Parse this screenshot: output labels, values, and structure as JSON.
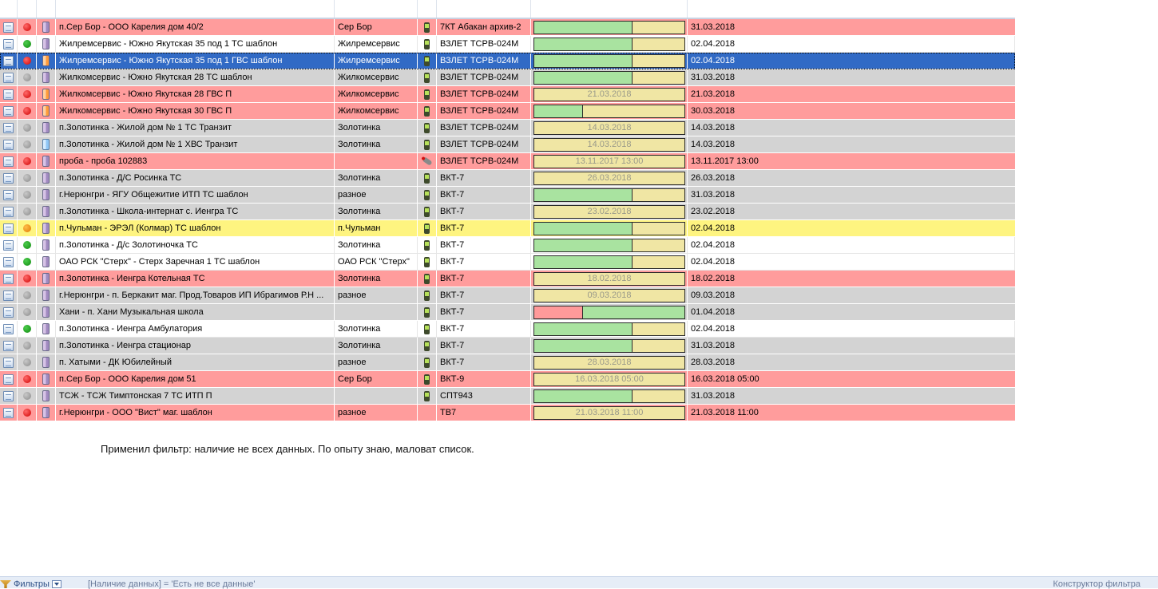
{
  "rows": [
    {
      "style": "red",
      "status": "red",
      "meter": "purple",
      "device": "device",
      "name": "п.Сер Бор - ООО Карелия дом 40/2",
      "group": "Сер Бор",
      "device_type": "7КТ Абакан архив-2",
      "bar_fill": 0.65,
      "bar_text": "",
      "date": "31.03.2018"
    },
    {
      "style": "white",
      "status": "green",
      "meter": "purple",
      "device": "device",
      "name": "Жилремсервис - Южно Якутская 35 под 1 ТС шаблон",
      "group": "Жилремсервис",
      "device_type": "ВЗЛЕТ ТСРВ-024М",
      "bar_fill": 0.65,
      "bar_text": "",
      "date": "02.04.2018"
    },
    {
      "style": "sel",
      "status": "red",
      "meter": "orange",
      "device": "device",
      "name": "Жилремсервис - Южно Якутская 35 под 1 ГВС шаблон",
      "group": "Жилремсервис",
      "device_type": "ВЗЛЕТ ТСРВ-024М",
      "bar_fill": 0.65,
      "bar_text": "",
      "date": "02.04.2018"
    },
    {
      "style": "gray",
      "status": "gray",
      "meter": "purple",
      "device": "device",
      "name": "Жилкомсервис - Южно Якутская 28 ТС шаблон",
      "group": "Жилкомсервис",
      "device_type": "ВЗЛЕТ ТСРВ-024М",
      "bar_fill": 0.65,
      "bar_text": "",
      "date": "31.03.2018"
    },
    {
      "style": "red",
      "status": "red",
      "meter": "orange",
      "device": "device",
      "name": "Жилкомсервис - Южно Якутская 28 ГВС П",
      "group": "Жилкомсервис",
      "device_type": "ВЗЛЕТ ТСРВ-024М",
      "bar_fill": 0,
      "bar_text": "21.03.2018",
      "date": "21.03.2018"
    },
    {
      "style": "red",
      "status": "red",
      "meter": "orange",
      "device": "device",
      "name": "Жилкомсервис - Южно Якутская 30 ГВС П",
      "group": "Жилкомсервис",
      "device_type": "ВЗЛЕТ ТСРВ-024М",
      "bar_fill": 0.32,
      "bar_text": "",
      "date": "30.03.2018"
    },
    {
      "style": "gray",
      "status": "gray",
      "meter": "purple",
      "device": "device",
      "name": "п.Золотинка - Жилой дом № 1 ТС Транзит",
      "group": "Золотинка",
      "device_type": "ВЗЛЕТ ТСРВ-024М",
      "bar_fill": 0,
      "bar_text": "14.03.2018",
      "date": "14.03.2018"
    },
    {
      "style": "gray",
      "status": "gray",
      "meter": "blue",
      "device": "device",
      "name": "п.Золотинка - Жилой дом № 1 ХВС Транзит",
      "group": "Золотинка",
      "device_type": "ВЗЛЕТ ТСРВ-024М",
      "bar_fill": 0,
      "bar_text": "14.03.2018",
      "date": "14.03.2018"
    },
    {
      "style": "red",
      "status": "red",
      "meter": "purple",
      "device": "probe",
      "name": "проба - проба 102883",
      "group": "",
      "device_type": "ВЗЛЕТ ТСРВ-024М",
      "bar_fill": 0,
      "bar_text": "13.11.2017 13:00",
      "date": "13.11.2017 13:00"
    },
    {
      "style": "gray",
      "status": "gray",
      "meter": "purple",
      "device": "device",
      "name": "п.Золотинка - Д/С Росинка ТС",
      "group": "Золотинка",
      "device_type": "ВКТ-7",
      "bar_fill": 0,
      "bar_text": "26.03.2018",
      "date": "26.03.2018"
    },
    {
      "style": "gray",
      "status": "gray",
      "meter": "purple",
      "device": "device",
      "name": "г.Нерюнгри - ЯГУ Общежитие ИТП ТС шаблон",
      "group": "разное",
      "device_type": "ВКТ-7",
      "bar_fill": 0.65,
      "bar_text": "",
      "date": "31.03.2018"
    },
    {
      "style": "gray",
      "status": "gray",
      "meter": "purple",
      "device": "device",
      "name": "п.Золотинка - Школа-интернат с. Иенгра ТС",
      "group": "Золотинка",
      "device_type": "ВКТ-7",
      "bar_fill": 0,
      "bar_text": "23.02.2018",
      "date": "23.02.2018"
    },
    {
      "style": "yellow",
      "status": "orange",
      "meter": "purple",
      "device": "device",
      "name": "п.Чульман - ЭРЭЛ (Колмар) ТС шаблон",
      "group": "п.Чульман",
      "device_type": "ВКТ-7",
      "bar_fill": 0.65,
      "bar_text": "",
      "date": "02.04.2018"
    },
    {
      "style": "white",
      "status": "green",
      "meter": "purple",
      "device": "device",
      "name": "п.Золотинка - Д/с Золотиночка ТС",
      "group": "Золотинка",
      "device_type": "ВКТ-7",
      "bar_fill": 0.65,
      "bar_text": "",
      "date": "02.04.2018"
    },
    {
      "style": "white",
      "status": "green",
      "meter": "purple",
      "device": "device",
      "name": "ОАО РСК \"Стерх\" - Стерх Заречная 1 ТС шаблон",
      "group": "ОАО РСК \"Стерх\"",
      "device_type": "ВКТ-7",
      "bar_fill": 0.65,
      "bar_text": "",
      "date": "02.04.2018"
    },
    {
      "style": "red",
      "status": "red",
      "meter": "purple",
      "device": "device",
      "name": "п.Золотинка - Иенгра Котельная ТС",
      "group": "Золотинка",
      "device_type": "ВКТ-7",
      "bar_fill": 0,
      "bar_text": "18.02.2018",
      "date": "18.02.2018"
    },
    {
      "style": "gray",
      "status": "gray",
      "meter": "purple",
      "device": "device",
      "name": "г.Нерюнгри - п. Беркакит маг. Прод.Товаров ИП Ибрагимов Р.Н ...",
      "group": "разное",
      "device_type": "ВКТ-7",
      "bar_fill": 0,
      "bar_text": "09.03.2018",
      "date": "09.03.2018"
    },
    {
      "style": "gray",
      "status": "gray",
      "meter": "purple",
      "device": "device",
      "name": "Хани - п. Хани Музыкальная школа",
      "group": "",
      "device_type": "ВКТ-7",
      "bar_fill": 1,
      "bar_split": true,
      "bar_text": "",
      "date": "01.04.2018"
    },
    {
      "style": "white",
      "status": "green",
      "meter": "purple",
      "device": "device",
      "name": "п.Золотинка - Иенгра Амбулатория",
      "group": "Золотинка",
      "device_type": "ВКТ-7",
      "bar_fill": 0.65,
      "bar_text": "",
      "date": "02.04.2018"
    },
    {
      "style": "gray",
      "status": "gray",
      "meter": "purple",
      "device": "device",
      "name": "п.Золотинка - Иенгра стационар",
      "group": "Золотинка",
      "device_type": "ВКТ-7",
      "bar_fill": 0.65,
      "bar_text": "",
      "date": "31.03.2018"
    },
    {
      "style": "gray",
      "status": "gray",
      "meter": "purple",
      "device": "device",
      "name": "п. Хатыми - ДК Юбилейный",
      "group": "разное",
      "device_type": "ВКТ-7",
      "bar_fill": 0,
      "bar_text": "28.03.2018",
      "date": "28.03.2018"
    },
    {
      "style": "red",
      "status": "red",
      "meter": "purple",
      "device": "device",
      "name": "п.Сер Бор - ООО Карелия дом 51",
      "group": "Сер Бор",
      "device_type": "ВКТ-9",
      "bar_fill": 0,
      "bar_text": "16.03.2018 05:00",
      "date": "16.03.2018 05:00"
    },
    {
      "style": "gray",
      "status": "gray",
      "meter": "purple",
      "device": "device",
      "name": "ТСЖ - ТСЖ Тимптонская 7 ТС  ИТП П",
      "group": "",
      "device_type": "СПТ943",
      "bar_fill": 0.65,
      "bar_text": "",
      "date": "31.03.2018"
    },
    {
      "style": "red",
      "status": "red",
      "meter": "purple",
      "device": "none",
      "name": "г.Нерюнгри - ООО \"Вист\" маг. шаблон",
      "group": "разное",
      "device_type": "ТВ7",
      "bar_fill": 0,
      "bar_text": "21.03.2018 11:00",
      "date": "21.03.2018 11:00"
    }
  ],
  "note": "Применил фильтр: наличие не всех данных. По опыту знаю, маловат список.",
  "filter_bar": {
    "label": "Фильтры",
    "expression": "[Наличие данных] = 'Есть не все данные'",
    "builder": "Конструктор фильтра"
  }
}
